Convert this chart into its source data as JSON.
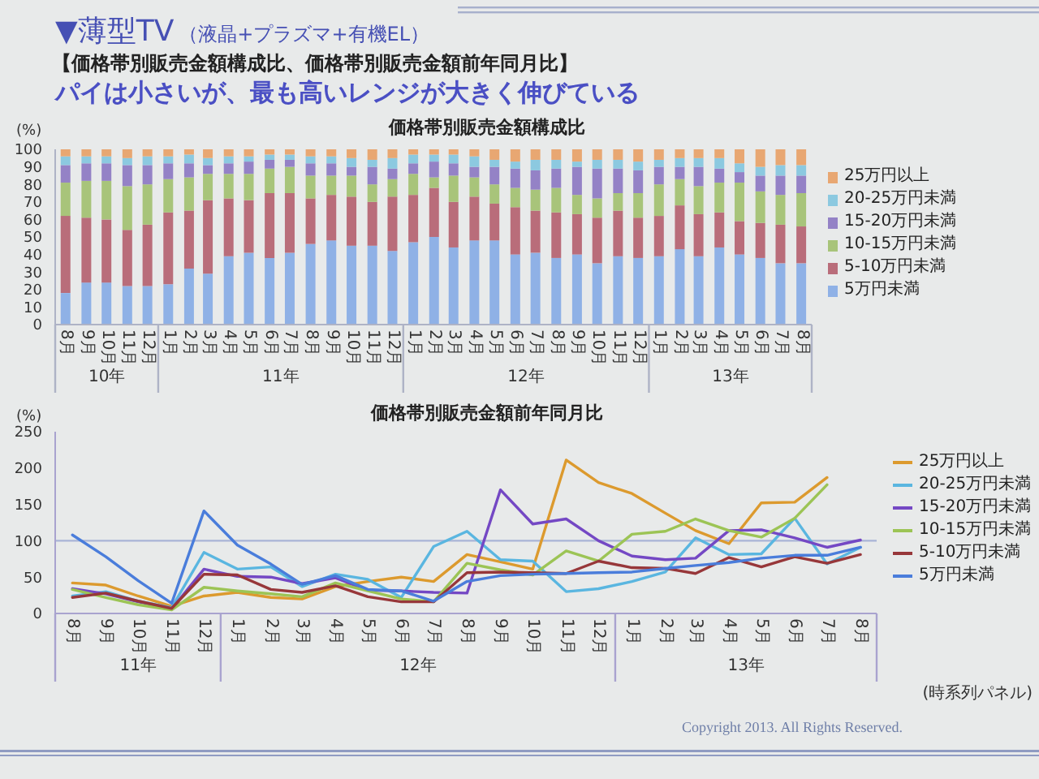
{
  "chart_data": [
    {
      "type": "other",
      "title": "▼薄型TV",
      "subtitle": "（液晶+プラズマ+有機EL）",
      "annotations": [
        "【価格帯別販売金額構成比、価格帯別販売金額前年同月比】",
        "パイは小さいが、最も高いレンジが大きく伸びている",
        "Copyright 2013. All Rights Reserved."
      ]
    },
    {
      "type": "bar",
      "title": "価格帯別販売金額構成比",
      "ylabel": "(%)",
      "stacked": true,
      "legend": "right",
      "x": [
        "2010-08",
        "2010-09",
        "2010-10",
        "2010-11",
        "2010-12",
        "2011-01",
        "2011-02",
        "2011-03",
        "2011-04",
        "2011-05",
        "2011-06",
        "2011-07",
        "2011-08",
        "2011-09",
        "2011-10",
        "2011-11",
        "2011-12",
        "2012-01",
        "2012-02",
        "2012-03",
        "2012-04",
        "2012-05",
        "2012-06",
        "2012-07",
        "2012-08",
        "2012-09",
        "2012-10",
        "2012-11",
        "2012-12",
        "2013-01",
        "2013-02",
        "2013-03",
        "2013-04",
        "2013-05",
        "2013-06",
        "2013-07",
        "2013-08"
      ],
      "xlim": [
        "2010-07-16",
        "2013-08-16"
      ],
      "xticks": [
        {
          "value": "2010-08",
          "label": "8月"
        },
        {
          "value": "2010-09",
          "label": "9月"
        },
        {
          "value": "2010-10",
          "label": "10月"
        },
        {
          "value": "2010-11",
          "label": "11月"
        },
        {
          "value": "2010-12",
          "label": "12月"
        },
        {
          "value": "2011-01",
          "label": "1月"
        },
        {
          "value": "2011-02",
          "label": "2月"
        },
        {
          "value": "2011-03",
          "label": "3月"
        },
        {
          "value": "2011-04",
          "label": "4月"
        },
        {
          "value": "2011-05",
          "label": "5月"
        },
        {
          "value": "2011-06",
          "label": "6月"
        },
        {
          "value": "2011-07",
          "label": "7月"
        },
        {
          "value": "2011-08",
          "label": "8月"
        },
        {
          "value": "2011-09",
          "label": "9月"
        },
        {
          "value": "2011-10",
          "label": "10月"
        },
        {
          "value": "2011-11",
          "label": "11月"
        },
        {
          "value": "2011-12",
          "label": "12月"
        },
        {
          "value": "2012-01",
          "label": "1月"
        },
        {
          "value": "2012-02",
          "label": "2月"
        },
        {
          "value": "2012-03",
          "label": "3月"
        },
        {
          "value": "2012-04",
          "label": "4月"
        },
        {
          "value": "2012-05",
          "label": "5月"
        },
        {
          "value": "2012-06",
          "label": "6月"
        },
        {
          "value": "2012-07",
          "label": "7月"
        },
        {
          "value": "2012-08",
          "label": "8月"
        },
        {
          "value": "2012-09",
          "label": "9月"
        },
        {
          "value": "2012-10",
          "label": "10月"
        },
        {
          "value": "2012-11",
          "label": "11月"
        },
        {
          "value": "2012-12",
          "label": "12月"
        },
        {
          "value": "2013-01",
          "label": "1月"
        },
        {
          "value": "2013-02",
          "label": "2月"
        },
        {
          "value": "2013-03",
          "label": "3月"
        },
        {
          "value": "2013-04",
          "label": "4月"
        },
        {
          "value": "2013-05",
          "label": "5月"
        },
        {
          "value": "2013-06",
          "label": "6月"
        },
        {
          "value": "2013-07",
          "label": "7月"
        },
        {
          "value": "2013-08",
          "label": "8月"
        }
      ],
      "ylim": [
        0,
        100
      ],
      "yticks": [
        0,
        10,
        20,
        30,
        40,
        50,
        60,
        70,
        80,
        90,
        100
      ],
      "series": [
        {
          "name": "5万円未満",
          "color": "#8fb1e6",
          "values": [
            18,
            24,
            24,
            22,
            22,
            23,
            32,
            29,
            39,
            41,
            38,
            41,
            46,
            48,
            45,
            45,
            42,
            47,
            50,
            44,
            48,
            48,
            40,
            41,
            38,
            40,
            35,
            39,
            38,
            39,
            43,
            39,
            44,
            40,
            38,
            35,
            35
          ]
        },
        {
          "name": "5-10万円未満",
          "color": "#b96d7a",
          "values": [
            44,
            37,
            36,
            32,
            35,
            41,
            33,
            42,
            33,
            30,
            37,
            34,
            26,
            26,
            28,
            25,
            31,
            27,
            28,
            26,
            25,
            21,
            27,
            24,
            26,
            23,
            26,
            26,
            23,
            23,
            25,
            24,
            20,
            19,
            20,
            22,
            21
          ]
        },
        {
          "name": "10-15万円未満",
          "color": "#a8c47a",
          "values": [
            19,
            21,
            22,
            25,
            23,
            19,
            19,
            15,
            14,
            15,
            14,
            15,
            13,
            11,
            12,
            10,
            10,
            12,
            6,
            15,
            11,
            11,
            11,
            12,
            14,
            11,
            11,
            10,
            14,
            18,
            15,
            16,
            17,
            22,
            18,
            17,
            19
          ]
        },
        {
          "name": "15-20万円未満",
          "color": "#9482c6",
          "values": [
            10,
            10,
            10,
            12,
            11,
            9,
            8,
            5,
            6,
            7,
            5,
            4,
            7,
            7,
            5,
            10,
            6,
            6,
            9,
            7,
            6,
            10,
            11,
            11,
            11,
            16,
            17,
            14,
            13,
            10,
            7,
            11,
            8,
            6,
            9,
            11,
            10
          ]
        },
        {
          "name": "20-25万円未満",
          "color": "#8cc9e0",
          "values": [
            5,
            4,
            4,
            4,
            5,
            4,
            5,
            4,
            4,
            3,
            3,
            3,
            4,
            4,
            5,
            4,
            6,
            5,
            4,
            5,
            6,
            4,
            4,
            6,
            5,
            3,
            5,
            5,
            5,
            4,
            5,
            5,
            6,
            5,
            5,
            6,
            6
          ]
        },
        {
          "name": "25万円以上",
          "color": "#e8a772",
          "values": [
            4,
            4,
            4,
            5,
            4,
            4,
            3,
            5,
            4,
            4,
            3,
            3,
            4,
            4,
            5,
            6,
            5,
            3,
            3,
            3,
            4,
            6,
            7,
            6,
            6,
            7,
            6,
            6,
            7,
            6,
            5,
            5,
            5,
            8,
            10,
            9,
            9
          ]
        }
      ],
      "annotations": [
        "10年",
        "11年",
        "12年",
        "13年"
      ]
    },
    {
      "type": "line",
      "title": "価格帯別販売金額前年同月比",
      "ylabel": "(%)",
      "legend": "right",
      "x": [
        "2011-08",
        "2011-09",
        "2011-10",
        "2011-11",
        "2011-12",
        "2012-01",
        "2012-02",
        "2012-03",
        "2012-04",
        "2012-05",
        "2012-06",
        "2012-07",
        "2012-08",
        "2012-09",
        "2012-10",
        "2012-11",
        "2012-12",
        "2013-01",
        "2013-02",
        "2013-03",
        "2013-04",
        "2013-05",
        "2013-06",
        "2013-07",
        "2013-08"
      ],
      "xlim": [
        "2011-07-16",
        "2013-08-16"
      ],
      "xticks": [
        {
          "value": "2011-08",
          "label": "8月"
        },
        {
          "value": "2011-09",
          "label": "9月"
        },
        {
          "value": "2011-10",
          "label": "10月"
        },
        {
          "value": "2011-11",
          "label": "11月"
        },
        {
          "value": "2011-12",
          "label": "12月"
        },
        {
          "value": "2012-01",
          "label": "1月"
        },
        {
          "value": "2012-02",
          "label": "2月"
        },
        {
          "value": "2012-03",
          "label": "3月"
        },
        {
          "value": "2012-04",
          "label": "4月"
        },
        {
          "value": "2012-05",
          "label": "5月"
        },
        {
          "value": "2012-06",
          "label": "6月"
        },
        {
          "value": "2012-07",
          "label": "7月"
        },
        {
          "value": "2012-08",
          "label": "8月"
        },
        {
          "value": "2012-09",
          "label": "9月"
        },
        {
          "value": "2012-10",
          "label": "10月"
        },
        {
          "value": "2012-11",
          "label": "11月"
        },
        {
          "value": "2012-12",
          "label": "12月"
        },
        {
          "value": "2013-01",
          "label": "1月"
        },
        {
          "value": "2013-02",
          "label": "2月"
        },
        {
          "value": "2013-03",
          "label": "3月"
        },
        {
          "value": "2013-04",
          "label": "4月"
        },
        {
          "value": "2013-05",
          "label": "5月"
        },
        {
          "value": "2013-06",
          "label": "6月"
        },
        {
          "value": "2013-07",
          "label": "7月"
        },
        {
          "value": "2013-08",
          "label": "8月"
        }
      ],
      "ylim": [
        0,
        250
      ],
      "yticks": [
        0,
        50,
        100,
        150,
        200,
        250
      ],
      "ref_lines": [
        {
          "axis": "y",
          "value": 100,
          "color": "#a9b4d6"
        }
      ],
      "series": [
        {
          "name": "25万円以上",
          "color": "#dc9a2e",
          "values": [
            42,
            39,
            24,
            10,
            24,
            29,
            22,
            20,
            37,
            44,
            50,
            44,
            81,
            71,
            61,
            211,
            180,
            165,
            138,
            114,
            96,
            152,
            153,
            187,
            null
          ]
        },
        {
          "name": "20-25万円未満",
          "color": "#5ab6e0",
          "values": [
            24,
            30,
            17,
            8,
            84,
            61,
            64,
            37,
            54,
            47,
            22,
            92,
            113,
            74,
            72,
            30,
            34,
            44,
            57,
            104,
            81,
            82,
            131,
            68,
            91
          ]
        },
        {
          "name": "15-20万円未満",
          "color": "#7448c4",
          "values": [
            34,
            27,
            16,
            6,
            61,
            51,
            50,
            41,
            49,
            32,
            31,
            29,
            28,
            170,
            123,
            130,
            100,
            79,
            74,
            76,
            114,
            115,
            104,
            91,
            101
          ]
        },
        {
          "name": "10-15万円未満",
          "color": "#9cc455",
          "values": [
            33,
            22,
            12,
            5,
            36,
            31,
            27,
            23,
            42,
            31,
            20,
            16,
            69,
            60,
            53,
            86,
            72,
            109,
            113,
            130,
            114,
            105,
            131,
            177,
            null
          ]
        },
        {
          "name": "5-10万円未満",
          "color": "#97373a",
          "values": [
            22,
            28,
            17,
            7,
            54,
            53,
            33,
            29,
            38,
            23,
            16,
            16,
            56,
            57,
            56,
            55,
            72,
            63,
            62,
            55,
            77,
            64,
            78,
            69,
            81
          ]
        },
        {
          "name": "5万円未満",
          "color": "#4a7ddb",
          "values": [
            108,
            78,
            45,
            14,
            141,
            94,
            68,
            40,
            52,
            33,
            31,
            17,
            44,
            52,
            54,
            55,
            56,
            57,
            62,
            66,
            70,
            76,
            80,
            80,
            91
          ]
        }
      ],
      "annotations": [
        "11年",
        "12年",
        "13年",
        "(時系列パネル)"
      ]
    }
  ]
}
